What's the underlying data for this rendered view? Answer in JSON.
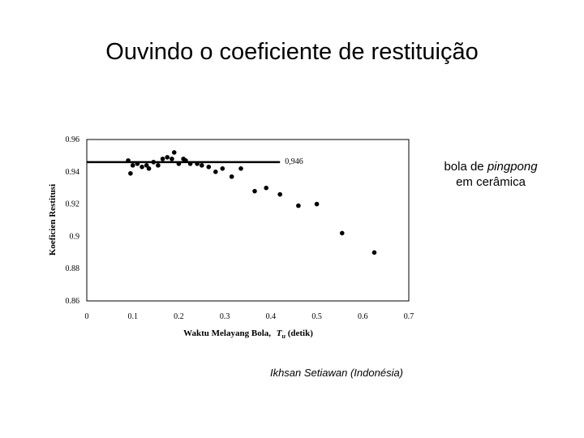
{
  "slide": {
    "title": "Ouvindo o coeficiente de restituição",
    "note_line1_prefix": "bola de ",
    "note_line1_italic": "pingpong",
    "note_line2": "em cerâmica",
    "credit": "Ikhsan Setiawan (Indonésia)"
  },
  "chart_data": {
    "type": "scatter",
    "xlabel_prefix": "Waktu Melayang Bola, ",
    "xlabel_var": "T",
    "xlabel_sub": "u",
    "xlabel_suffix": " (detik)",
    "ylabel": "Koeficien Restitusi",
    "xlim": [
      0,
      0.7
    ],
    "ylim": [
      0.86,
      0.96
    ],
    "x_tick_labels": [
      "0",
      "0.1",
      "0.2",
      "0.3",
      "0.4",
      "0.5",
      "0.6",
      "0.7"
    ],
    "y_tick_labels": [
      "0.86",
      "0.88",
      "0.9",
      "0.92",
      "0.94",
      "0.96"
    ],
    "reference_line": {
      "y": 0.946,
      "x_start": 0,
      "x_end": 0.42,
      "label": "0,946"
    },
    "points": [
      {
        "x": 0.09,
        "y": 0.947
      },
      {
        "x": 0.095,
        "y": 0.939
      },
      {
        "x": 0.1,
        "y": 0.944
      },
      {
        "x": 0.11,
        "y": 0.945
      },
      {
        "x": 0.12,
        "y": 0.943
      },
      {
        "x": 0.13,
        "y": 0.944
      },
      {
        "x": 0.135,
        "y": 0.942
      },
      {
        "x": 0.145,
        "y": 0.946
      },
      {
        "x": 0.155,
        "y": 0.944
      },
      {
        "x": 0.165,
        "y": 0.948
      },
      {
        "x": 0.175,
        "y": 0.949
      },
      {
        "x": 0.185,
        "y": 0.948
      },
      {
        "x": 0.19,
        "y": 0.952
      },
      {
        "x": 0.2,
        "y": 0.945
      },
      {
        "x": 0.21,
        "y": 0.948
      },
      {
        "x": 0.215,
        "y": 0.947
      },
      {
        "x": 0.225,
        "y": 0.945
      },
      {
        "x": 0.24,
        "y": 0.945
      },
      {
        "x": 0.25,
        "y": 0.944
      },
      {
        "x": 0.265,
        "y": 0.943
      },
      {
        "x": 0.28,
        "y": 0.94
      },
      {
        "x": 0.295,
        "y": 0.942
      },
      {
        "x": 0.315,
        "y": 0.937
      },
      {
        "x": 0.335,
        "y": 0.942
      },
      {
        "x": 0.365,
        "y": 0.928
      },
      {
        "x": 0.39,
        "y": 0.93
      },
      {
        "x": 0.42,
        "y": 0.926
      },
      {
        "x": 0.46,
        "y": 0.919
      },
      {
        "x": 0.5,
        "y": 0.92
      },
      {
        "x": 0.555,
        "y": 0.902
      },
      {
        "x": 0.625,
        "y": 0.89
      }
    ]
  }
}
